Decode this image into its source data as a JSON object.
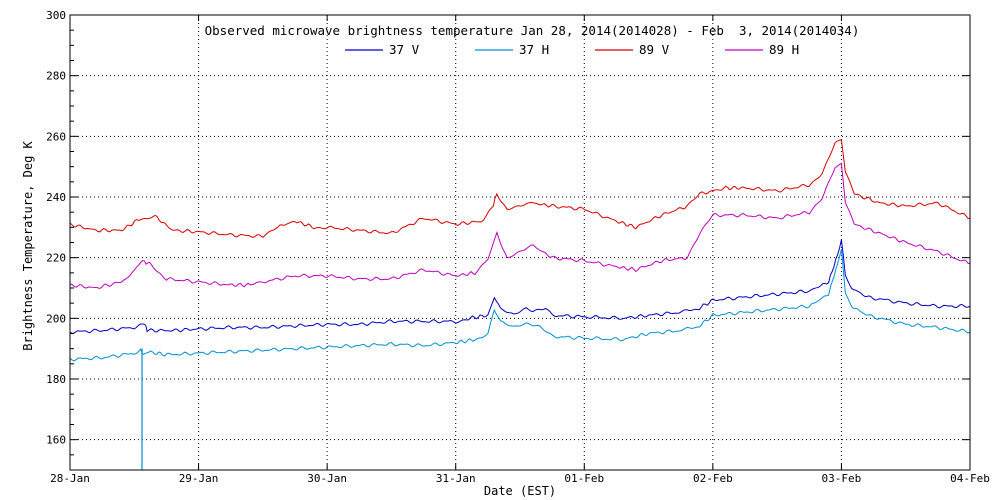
{
  "chart_data": {
    "type": "line",
    "title": "Observed microwave brightness temperature Jan 28, 2014(2014028) - Feb  3, 2014(2014034)",
    "xlabel": "Date (EST)",
    "ylabel": "Brightness Temperature, Deg K",
    "xlim": [
      0,
      7
    ],
    "ylim": [
      150,
      300
    ],
    "x_tick_values": [
      0,
      1,
      2,
      3,
      4,
      5,
      6,
      7
    ],
    "x_tick_labels": [
      "28-Jan",
      "29-Jan",
      "30-Jan",
      "31-Jan",
      "01-Feb",
      "02-Feb",
      "03-Feb",
      "04-Feb"
    ],
    "y_ticks": [
      160,
      180,
      200,
      220,
      240,
      260,
      280,
      300
    ],
    "grid": true,
    "legend_position": "top-center",
    "series": [
      {
        "name": "37 V",
        "color": "#0000c8",
        "points": [
          [
            0,
            195.5
          ],
          [
            0.25,
            196
          ],
          [
            0.5,
            197
          ],
          [
            0.58,
            198
          ],
          [
            0.6,
            196
          ],
          [
            0.8,
            196
          ],
          [
            1,
            196.5
          ],
          [
            1.25,
            197
          ],
          [
            1.5,
            197
          ],
          [
            1.75,
            197.5
          ],
          [
            2,
            198
          ],
          [
            2.25,
            198
          ],
          [
            2.5,
            199
          ],
          [
            2.75,
            199
          ],
          [
            3,
            199
          ],
          [
            3.1,
            200
          ],
          [
            3.25,
            201
          ],
          [
            3.3,
            207
          ],
          [
            3.35,
            203
          ],
          [
            3.45,
            201
          ],
          [
            3.55,
            203
          ],
          [
            3.6,
            202
          ],
          [
            3.7,
            203
          ],
          [
            3.75,
            201
          ],
          [
            4,
            200.5
          ],
          [
            4.3,
            200
          ],
          [
            4.5,
            201
          ],
          [
            4.75,
            202
          ],
          [
            4.88,
            203
          ],
          [
            5,
            206
          ],
          [
            5.25,
            207
          ],
          [
            5.5,
            208
          ],
          [
            5.75,
            209
          ],
          [
            5.9,
            212
          ],
          [
            5.97,
            221
          ],
          [
            6,
            226
          ],
          [
            6.03,
            214
          ],
          [
            6.08,
            210
          ],
          [
            6.2,
            207
          ],
          [
            6.5,
            205
          ],
          [
            6.75,
            204
          ],
          [
            7,
            204
          ]
        ]
      },
      {
        "name": "37 H",
        "color": "#0090d8",
        "points": [
          [
            0,
            186.5
          ],
          [
            0.25,
            187
          ],
          [
            0.5,
            188.5
          ],
          [
            0.55,
            190
          ],
          [
            0.57,
            188
          ],
          [
            0.6,
            189
          ],
          [
            0.75,
            188
          ],
          [
            1,
            188.5
          ],
          [
            1.25,
            189
          ],
          [
            1.5,
            189.5
          ],
          [
            1.75,
            190
          ],
          [
            2,
            190.5
          ],
          [
            2.25,
            191
          ],
          [
            2.5,
            191.5
          ],
          [
            2.75,
            191
          ],
          [
            3,
            192
          ],
          [
            3.15,
            193
          ],
          [
            3.25,
            195
          ],
          [
            3.3,
            203
          ],
          [
            3.35,
            199
          ],
          [
            3.45,
            197
          ],
          [
            3.55,
            198
          ],
          [
            3.65,
            197
          ],
          [
            3.75,
            194
          ],
          [
            4,
            193.5
          ],
          [
            4.3,
            193
          ],
          [
            4.5,
            195
          ],
          [
            4.75,
            196
          ],
          [
            4.88,
            197
          ],
          [
            5,
            201
          ],
          [
            5.25,
            202
          ],
          [
            5.5,
            203
          ],
          [
            5.75,
            204
          ],
          [
            5.9,
            208
          ],
          [
            5.97,
            218
          ],
          [
            6,
            223
          ],
          [
            6.03,
            208
          ],
          [
            6.08,
            204
          ],
          [
            6.2,
            201
          ],
          [
            6.5,
            198
          ],
          [
            6.75,
            197
          ],
          [
            7,
            195.5
          ]
        ]
      },
      {
        "name": "89 V",
        "color": "#d80000",
        "points": [
          [
            0,
            231
          ],
          [
            0.2,
            229
          ],
          [
            0.4,
            229
          ],
          [
            0.55,
            233
          ],
          [
            0.6,
            233
          ],
          [
            0.65,
            234
          ],
          [
            0.8,
            229
          ],
          [
            1,
            228.5
          ],
          [
            1.25,
            227.5
          ],
          [
            1.5,
            227
          ],
          [
            1.6,
            230
          ],
          [
            1.75,
            232
          ],
          [
            1.9,
            230
          ],
          [
            2,
            230
          ],
          [
            2.25,
            229
          ],
          [
            2.5,
            228
          ],
          [
            2.75,
            233
          ],
          [
            3,
            231
          ],
          [
            3.2,
            232
          ],
          [
            3.28,
            236
          ],
          [
            3.32,
            241
          ],
          [
            3.4,
            236
          ],
          [
            3.5,
            237
          ],
          [
            3.6,
            238
          ],
          [
            3.75,
            237
          ],
          [
            4,
            236
          ],
          [
            4.25,
            232
          ],
          [
            4.4,
            230
          ],
          [
            4.6,
            234
          ],
          [
            4.8,
            237
          ],
          [
            4.9,
            241
          ],
          [
            5.1,
            243
          ],
          [
            5.25,
            243
          ],
          [
            5.5,
            242
          ],
          [
            5.75,
            244
          ],
          [
            5.85,
            248
          ],
          [
            5.95,
            258
          ],
          [
            6,
            259
          ],
          [
            6.03,
            248
          ],
          [
            6.1,
            241
          ],
          [
            6.3,
            238
          ],
          [
            6.5,
            237
          ],
          [
            6.75,
            238
          ],
          [
            7,
            233
          ]
        ]
      },
      {
        "name": "89 H",
        "color": "#c000c0",
        "points": [
          [
            0,
            211
          ],
          [
            0.2,
            210
          ],
          [
            0.4,
            212
          ],
          [
            0.5,
            216
          ],
          [
            0.55,
            219
          ],
          [
            0.62,
            218
          ],
          [
            0.75,
            213
          ],
          [
            1,
            212
          ],
          [
            1.25,
            211
          ],
          [
            1.4,
            211
          ],
          [
            1.5,
            212
          ],
          [
            1.75,
            214
          ],
          [
            2,
            214
          ],
          [
            2.25,
            213
          ],
          [
            2.5,
            213
          ],
          [
            2.75,
            216
          ],
          [
            3,
            214
          ],
          [
            3.15,
            215
          ],
          [
            3.25,
            220
          ],
          [
            3.32,
            228
          ],
          [
            3.4,
            220
          ],
          [
            3.5,
            222
          ],
          [
            3.6,
            224
          ],
          [
            3.75,
            220
          ],
          [
            4,
            219
          ],
          [
            4.25,
            217
          ],
          [
            4.4,
            216
          ],
          [
            4.6,
            219
          ],
          [
            4.8,
            220
          ],
          [
            4.9,
            228
          ],
          [
            5,
            234
          ],
          [
            5.25,
            234
          ],
          [
            5.5,
            233
          ],
          [
            5.75,
            235
          ],
          [
            5.85,
            240
          ],
          [
            5.95,
            250
          ],
          [
            6,
            251
          ],
          [
            6.03,
            238
          ],
          [
            6.1,
            231
          ],
          [
            6.3,
            228
          ],
          [
            6.5,
            225
          ],
          [
            6.75,
            222
          ],
          [
            7,
            218
          ]
        ]
      }
    ],
    "spikes": [
      {
        "series": "37 H",
        "x": 0.56,
        "y_low": 150,
        "y_high": 190
      }
    ]
  }
}
